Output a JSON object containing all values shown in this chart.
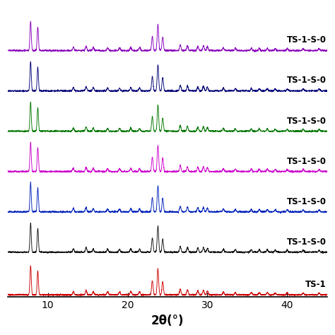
{
  "xlabel": "2θ(°)",
  "xlim": [
    5,
    45
  ],
  "xticks": [
    10,
    20,
    30,
    40
  ],
  "background_color": "#ffffff",
  "series": [
    {
      "label": "TS-1",
      "color": "#cc0000"
    },
    {
      "label": "TS-1-S-0",
      "color": "#111111"
    },
    {
      "label": "TS-1-S-0",
      "color": "#0022bb"
    },
    {
      "label": "TS-1-S-0",
      "color": "#cc00cc"
    },
    {
      "label": "TS-1-S-0",
      "color": "#007700"
    },
    {
      "label": "TS-1-S-0",
      "color": "#000077"
    },
    {
      "label": "TS-1-S-0",
      "color": "#8800bb"
    }
  ],
  "offsets": [
    0.0,
    0.9,
    1.75,
    2.6,
    3.45,
    4.3,
    5.15
  ],
  "noise_level": 0.008,
  "lw": 0.65,
  "label_fontsize": 8.5
}
